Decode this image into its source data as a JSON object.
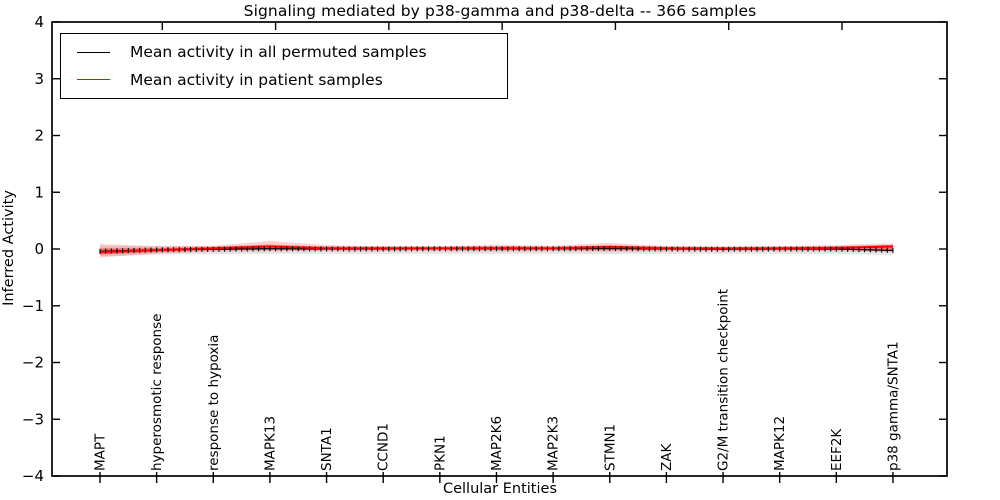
{
  "chart_data": {
    "type": "line",
    "title": "Signaling mediated by p38-gamma and p38-delta -- 366 samples",
    "xlabel": "Cellular Entities",
    "ylabel": "Inferred Activity",
    "ylim": [
      -4,
      4
    ],
    "yticks": [
      -4,
      -3,
      -2,
      -1,
      0,
      1,
      2,
      3,
      4
    ],
    "ytick_labels": [
      "−4",
      "−3",
      "−2",
      "−1",
      "0",
      "1",
      "2",
      "3",
      "4"
    ],
    "grid": false,
    "legend_position": "upper left",
    "n_entities": 141,
    "labeled_every": 10,
    "categories": [
      "MAPT",
      "hyperosmotic response",
      "response to hypoxia",
      "MAPK13",
      "SNTA1",
      "CCND1",
      "PKN1",
      "MAP2K6",
      "MAP2K3",
      "STMN1",
      "ZAK",
      "G2/M transition checkpoint",
      "MAPK12",
      "EEF2K",
      "p38 gamma/SNTA1"
    ],
    "top_ticks_at_entities": [
      11,
      31,
      51,
      71,
      91,
      111,
      131
    ],
    "series": [
      {
        "name": "Mean activity in all permuted samples",
        "color": "#000000",
        "marker": "vertical-tick",
        "values_at_categories": [
          -0.04,
          -0.015,
          -0.005,
          0.005,
          0,
          0,
          0.005,
          0.005,
          0.005,
          0.01,
          0,
          -0.005,
          0,
          0,
          -0.025
        ]
      },
      {
        "name": "Mean activity in patient samples",
        "color": "#ff0000",
        "marker": "none",
        "values_at_categories": [
          -0.055,
          -0.02,
          0.01,
          0.045,
          0.012,
          0.012,
          0.012,
          0.015,
          0.012,
          0.035,
          0.012,
          0.008,
          0.012,
          0.02,
          0.045
        ]
      }
    ],
    "bands": [
      {
        "name": "permuted-samples-range",
        "color": "rgba(0,0,0,0.10)",
        "upper": [
          0.055,
          0.05,
          0.05,
          0.055,
          0.05,
          0.05,
          0.05,
          0.05,
          0.05,
          0.055,
          0.05,
          0.05,
          0.05,
          0.05,
          0.05
        ],
        "lower": [
          -0.13,
          -0.1,
          -0.09,
          -0.085,
          -0.085,
          -0.085,
          -0.085,
          -0.085,
          -0.085,
          -0.09,
          -0.085,
          -0.085,
          -0.085,
          -0.09,
          -0.105
        ]
      },
      {
        "name": "patient-samples-range-outer",
        "color": "rgba(255,0,0,0.18)",
        "upper": [
          0.09,
          0.05,
          0.06,
          0.14,
          0.07,
          0.05,
          0.05,
          0.08,
          0.06,
          0.11,
          0.05,
          0.04,
          0.05,
          0.07,
          0.1
        ],
        "lower": [
          -0.15,
          -0.08,
          -0.05,
          -0.04,
          -0.04,
          -0.04,
          -0.04,
          -0.045,
          -0.04,
          -0.05,
          -0.04,
          -0.04,
          -0.04,
          -0.045,
          -0.05
        ]
      },
      {
        "name": "patient-samples-range-inner",
        "color": "rgba(255,0,0,0.40)",
        "upper": [
          0.01,
          0.015,
          0.035,
          0.08,
          0.04,
          0.035,
          0.035,
          0.045,
          0.035,
          0.065,
          0.035,
          0.03,
          0.035,
          0.045,
          0.075
        ],
        "lower": [
          -0.1,
          -0.055,
          -0.02,
          -0.01,
          -0.015,
          -0.012,
          -0.012,
          -0.015,
          -0.012,
          -0.02,
          -0.012,
          -0.012,
          -0.012,
          -0.015,
          -0.01
        ]
      }
    ],
    "axis_color": "#000000"
  }
}
